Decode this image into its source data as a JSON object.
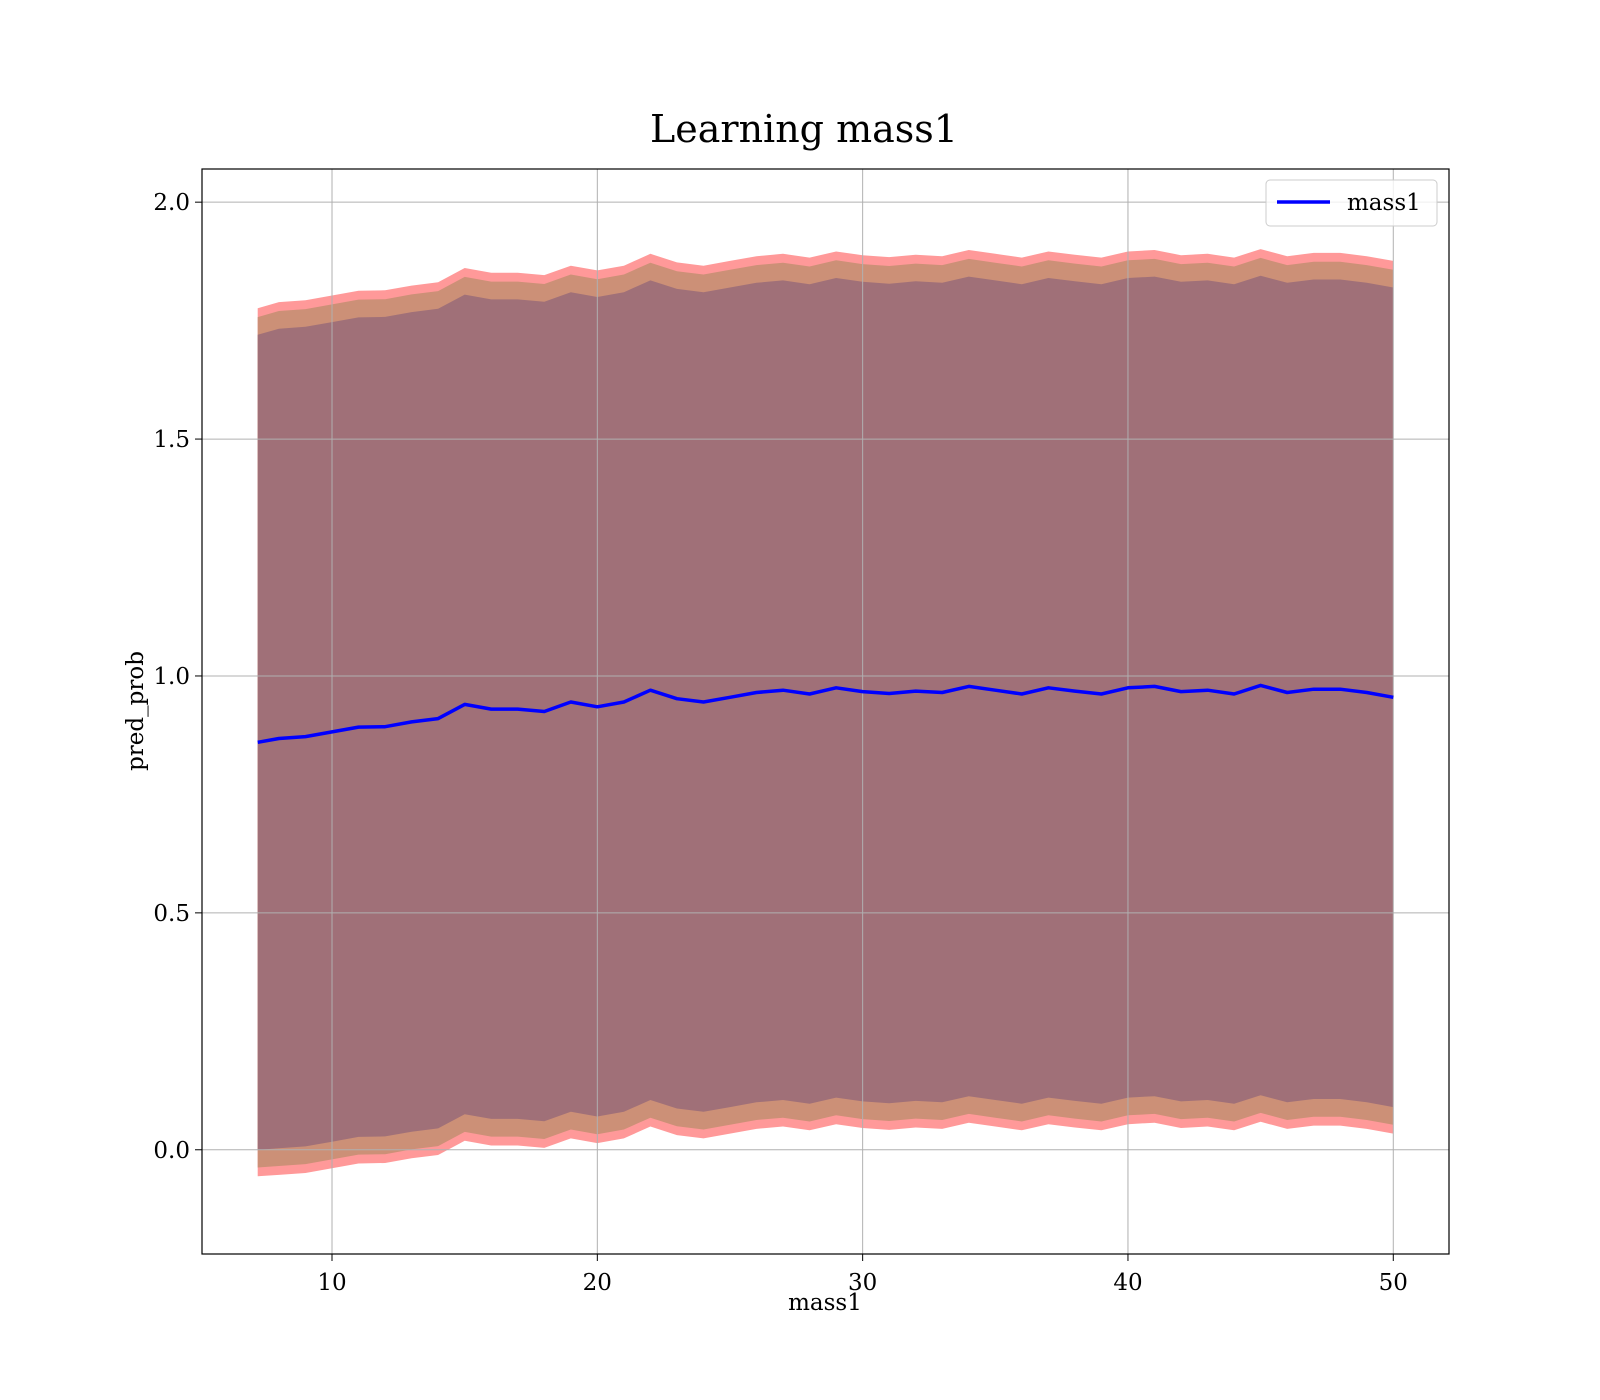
{
  "chart_data": {
    "type": "line",
    "title": "Learning mass1",
    "xlabel": "mass1",
    "ylabel": "pred_prob",
    "xlim": [
      5.1,
      52.1
    ],
    "ylim": [
      -0.22,
      2.07
    ],
    "xticks": [
      10,
      20,
      30,
      40,
      50
    ],
    "yticks": [
      0.0,
      0.5,
      1.0,
      1.5,
      2.0
    ],
    "xtick_labels": [
      "10",
      "20",
      "30",
      "40",
      "50"
    ],
    "ytick_labels": [
      "0.0",
      "0.5",
      "1.0",
      "1.5",
      "2.0"
    ],
    "grid": true,
    "legend": {
      "placement": "upper-right",
      "entries": [
        "mass1"
      ]
    },
    "colors": {
      "line": "#0000ff",
      "band_outer": "#ff9999",
      "band_middle": "#cc9077",
      "band_inner": "#a07078",
      "grid": "#b0b0b0"
    },
    "series": [
      {
        "name": "mass1",
        "x": [
          7.2,
          8,
          9,
          10,
          11,
          12,
          13,
          14,
          15,
          16,
          17,
          18,
          19,
          20,
          21,
          22,
          23,
          24,
          25,
          26,
          27,
          28,
          29,
          30,
          31,
          32,
          33,
          34,
          35,
          36,
          37,
          38,
          39,
          40,
          41,
          42,
          43,
          44,
          45,
          46,
          47,
          48,
          49,
          50
        ],
        "mean": [
          0.86,
          0.868,
          0.872,
          0.882,
          0.892,
          0.893,
          0.903,
          0.91,
          0.94,
          0.93,
          0.93,
          0.925,
          0.945,
          0.935,
          0.945,
          0.97,
          0.952,
          0.945,
          0.955,
          0.965,
          0.97,
          0.962,
          0.975,
          0.967,
          0.963,
          0.968,
          0.965,
          0.978,
          0.97,
          0.962,
          0.975,
          0.968,
          0.962,
          0.975,
          0.978,
          0.967,
          0.97,
          0.962,
          0.98,
          0.965,
          0.972,
          0.972,
          0.965,
          0.955
        ],
        "std": [
          0.93,
          0.935,
          0.935,
          0.935,
          0.935,
          0.935,
          0.935,
          0.935,
          0.935,
          0.935,
          0.935,
          0.935,
          0.935,
          0.935,
          0.935,
          0.935,
          0.935,
          0.935,
          0.935,
          0.935,
          0.935,
          0.935,
          0.935,
          0.935,
          0.935,
          0.935,
          0.935,
          0.935,
          0.935,
          0.935,
          0.935,
          0.935,
          0.935,
          0.935,
          0.935,
          0.935,
          0.935,
          0.935,
          0.935,
          0.935,
          0.935,
          0.935,
          0.935,
          0.935
        ]
      }
    ],
    "bands": [
      {
        "name": "outer",
        "color": "#ff9999",
        "spread": 0.985
      },
      {
        "name": "middle",
        "color": "#cc9077",
        "spread": 0.965
      },
      {
        "name": "inner",
        "color": "#a07078",
        "spread": 0.925
      }
    ]
  }
}
